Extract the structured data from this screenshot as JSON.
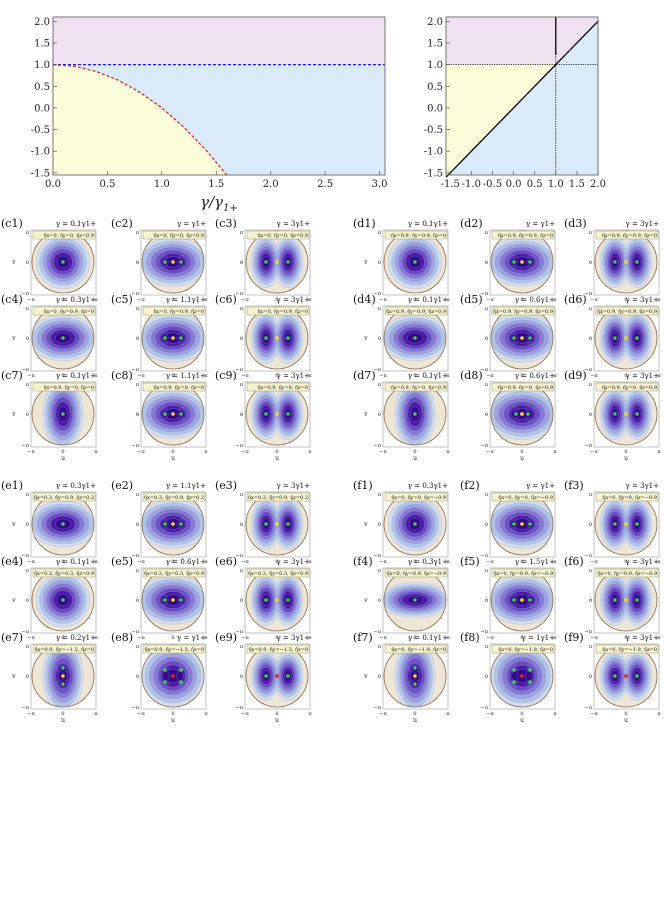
{
  "chart_data": [
    {
      "type": "line",
      "xlabel": "γ/γ1+",
      "xlim": [
        0,
        3.05
      ],
      "ylim": [
        -1.55,
        2.1
      ],
      "xticks": [
        "0.0",
        "0.5",
        "1.0",
        "1.5",
        "2.0",
        "2.5",
        "3.0"
      ],
      "yticks": [
        "-1.5",
        "-1.0",
        "-0.5",
        "0.0",
        "0.5",
        "1.0",
        "1.5",
        "2.0"
      ],
      "regions": [
        {
          "color": "#f0e1f1",
          "y_from": 1.0,
          "y_to": 2.1
        },
        {
          "color": "#dbeaf8",
          "bounded_by": "curve",
          "side": "above"
        },
        {
          "color": "#fdfdd9",
          "bounded_by": "curve",
          "side": "below"
        }
      ],
      "series": [
        {
          "style": "dashed",
          "color": "#1a1aff",
          "x": [
            0,
            3.05
          ],
          "y": [
            1.0,
            1.0
          ]
        },
        {
          "style": "dashed",
          "color": "#e02020",
          "x": [
            0,
            0.2,
            0.4,
            0.6,
            0.8,
            1.0,
            1.2,
            1.4,
            1.6
          ],
          "y": [
            1.0,
            0.96,
            0.84,
            0.64,
            0.36,
            0.0,
            -0.44,
            -0.96,
            -1.56
          ]
        }
      ]
    },
    {
      "type": "line",
      "xlim": [
        -1.6,
        2.0
      ],
      "ylim": [
        -1.55,
        2.1
      ],
      "xticks": [
        "-1.5",
        "-1.0",
        "-0.5",
        "0.0",
        "0.5",
        "1.0",
        "1.5",
        "2.0"
      ],
      "yticks": [
        "-1.5",
        "-1.0",
        "-0.5",
        "0.0",
        "0.5",
        "1.0",
        "1.5",
        "2.0"
      ],
      "regions": [
        {
          "color": "#f0e1f1",
          "description": "y>1 and y>x"
        },
        {
          "color": "#fdfdd9",
          "description": "y<1 and y>x"
        },
        {
          "color": "#dbeaf8",
          "description": "y<x"
        }
      ],
      "series": [
        {
          "style": "solid",
          "color": "#000000",
          "x": [
            -1.6,
            2.0
          ],
          "y": [
            -1.6,
            2.0
          ]
        },
        {
          "style": "solid",
          "color": "#000000",
          "x": [
            1.0,
            1.0
          ],
          "y": [
            1.22,
            2.1
          ]
        },
        {
          "style": "dotted",
          "color": "#000000",
          "x": [
            1.0,
            1.0
          ],
          "y": [
            -1.55,
            1.22
          ]
        },
        {
          "style": "dotted",
          "color": "#000000",
          "x": [
            -1.6,
            2.0
          ],
          "y": [
            1.0,
            1.0
          ]
        }
      ]
    },
    {
      "type": "heatmap",
      "axis_labels": {
        "x": "u",
        "y": "v"
      },
      "ticks": {
        "x": [
          "−π",
          "0",
          "π"
        ],
        "y": [
          "π",
          "0",
          "−π"
        ]
      },
      "color_scale": [
        "#ede5d6",
        "#d5dced",
        "#b2c4e6",
        "#9fa1e0",
        "#8678d3",
        "#6a4cc2",
        "#4c1aa6",
        "#35098b"
      ],
      "marker_colors": {
        "minimum": "#3ad44a",
        "saddle": "#f2e21a",
        "maximum": "#e22525"
      },
      "panels": [
        {
          "id": "(c1)",
          "gamma": "γ = 0.1γ1+",
          "eta": "η̃x=0, η̃y=0, η̃z=0.9",
          "shape": "single"
        },
        {
          "id": "(c2)",
          "gamma": "γ = γ1+",
          "eta": "η̃x=0, η̃y=0, η̃z=0.9",
          "shape": "double"
        },
        {
          "id": "(c3)",
          "gamma": "γ = 3γ1+",
          "eta": "η̃x=0, η̃y=0, η̃z=0.9",
          "shape": "sep"
        },
        {
          "id": "(d1)",
          "gamma": "γ = 0.1γ1+",
          "eta": "η̃x=0.9, η̃y=0.9, η̃z=0",
          "shape": "single"
        },
        {
          "id": "(d2)",
          "gamma": "γ = γ1+",
          "eta": "η̃x=0.9, η̃y=0.9, η̃z=0",
          "shape": "double"
        },
        {
          "id": "(d3)",
          "gamma": "γ = 3γ1+",
          "eta": "η̃x=0.9, η̃y=0.9, η̃z=0",
          "shape": "sep"
        },
        {
          "id": "(c4)",
          "gamma": "γ = 0.3γ1+",
          "eta": "η̃x=0, η̃y=0.9, η̃z=0",
          "shape": "hwide"
        },
        {
          "id": "(c5)",
          "gamma": "γ = 1.1γ1+",
          "eta": "η̃x=0, η̃y=0.9, η̃z=0",
          "shape": "double"
        },
        {
          "id": "(c6)",
          "gamma": "γ = 3γ1+",
          "eta": "η̃x=0, η̃y=0.9, η̃z=0",
          "shape": "sep"
        },
        {
          "id": "(d4)",
          "gamma": "γ = 0.1γ1+",
          "eta": "η̃x=0.9, η̃y=0.9, η̃z=0.9",
          "shape": "hwide"
        },
        {
          "id": "(d5)",
          "gamma": "γ = 0.6γ1+",
          "eta": "η̃x=0.9, η̃y=0.9, η̃z=0.9",
          "shape": "double"
        },
        {
          "id": "(d6)",
          "gamma": "γ = 3γ1+",
          "eta": "η̃x=0.9, η̃y=0.9, η̃z=0.9",
          "shape": "sep"
        },
        {
          "id": "(c7)",
          "gamma": "γ = 0.1γ1+",
          "eta": "η̃x=0.9, η̃y=0, η̃z=0",
          "shape": "vtall"
        },
        {
          "id": "(c8)",
          "gamma": "γ = 1.1γ1+",
          "eta": "η̃x=0.9, η̃y=0, η̃z=0",
          "shape": "double"
        },
        {
          "id": "(c9)",
          "gamma": "γ = 3γ1+",
          "eta": "η̃x=0.9, η̃y=0, η̃z=0",
          "shape": "sep"
        },
        {
          "id": "(d7)",
          "gamma": "γ = 0.1γ1+",
          "eta": "η̃x=0.9, η̃y=0, η̃z=0.9",
          "shape": "vtall"
        },
        {
          "id": "(d8)",
          "gamma": "γ = 0.6γ1+",
          "eta": "η̃x=0.9, η̃y=0, η̃z=0.9",
          "shape": "doublewide"
        },
        {
          "id": "(d9)",
          "gamma": "γ = 3γ1+",
          "eta": "η̃x=0.9, η̃y=0, η̃z=0.9",
          "shape": "sep"
        },
        {
          "id": "(e1)",
          "gamma": "γ = 0.3γ1+",
          "eta": "η̃x=0.3, η̃y=0.9, η̃z=0.2",
          "shape": "hwide"
        },
        {
          "id": "(e2)",
          "gamma": "γ = 1.1γ1+",
          "eta": "η̃x=0.3, η̃y=0.9, η̃z=0.2",
          "shape": "double"
        },
        {
          "id": "(e3)",
          "gamma": "γ = 3γ1+",
          "eta": "η̃x=0.3, η̃y=0.9, η̃z=0.2",
          "shape": "sep"
        },
        {
          "id": "(f1)",
          "gamma": "γ = 0.3γ1+",
          "eta": "η̃x=0, η̃y=0, η̃z=−0.9",
          "shape": "single"
        },
        {
          "id": "(f2)",
          "gamma": "γ = γ1+",
          "eta": "η̃x=0, η̃y=0, η̃z=−0.9",
          "shape": "double"
        },
        {
          "id": "(f3)",
          "gamma": "γ = 3γ1+",
          "eta": "η̃x=0, η̃y=0, η̃z=−0.9",
          "shape": "sep"
        },
        {
          "id": "(e4)",
          "gamma": "γ = 0.1γ1+",
          "eta": "η̃x=0.2, η̃y=0.3, η̃z=0.9",
          "shape": "single"
        },
        {
          "id": "(e5)",
          "gamma": "γ = 0.6γ1+",
          "eta": "η̃x=0.2, η̃y=0.3, η̃z=0.9",
          "shape": "double"
        },
        {
          "id": "(e6)",
          "gamma": "γ = 3γ1+",
          "eta": "η̃x=0.2, η̃y=0.3, η̃z=0.9",
          "shape": "sep"
        },
        {
          "id": "(f4)",
          "gamma": "γ = 0.3γ1+",
          "eta": "η̃x=0, η̃y=0.9, η̃z=−0.9",
          "shape": "hflat"
        },
        {
          "id": "(f5)",
          "gamma": "γ = 1.5γ1+",
          "eta": "η̃x=0, η̃y=0.9, η̃z=−0.9",
          "shape": "double"
        },
        {
          "id": "(f6)",
          "gamma": "γ = 3γ1+",
          "eta": "η̃x=0, η̃y=0.9, η̃z=−0.9",
          "shape": "sep"
        },
        {
          "id": "(e7)",
          "gamma": "γ = 0.2γ1+",
          "eta": "η̃x=0.9, η̃y=−1.5, η̃z=0",
          "shape": "vdouble"
        },
        {
          "id": "(e8)",
          "gamma": "γ = γ1+",
          "eta": "η̃x=0.9, η̃y=−1.5, η̃z=0",
          "shape": "square"
        },
        {
          "id": "(e9)",
          "gamma": "γ = 3γ1+",
          "eta": "η̃x=0.9, η̃y=−1.5, η̃z=0",
          "shape": "sepred"
        },
        {
          "id": "(f7)",
          "gamma": "γ = 0.1γ1+",
          "eta": "η̃x=0, η̃y=−1.9, η̃z=0",
          "shape": "vdouble"
        },
        {
          "id": "(f8)",
          "gamma": "γ = 1γ1+",
          "eta": "η̃x=0, η̃y=−1.9, η̃z=0",
          "shape": "square"
        },
        {
          "id": "(f9)",
          "gamma": "γ = 3γ1+",
          "eta": "η̃x=0, η̃y=−1.9, η̃z=0",
          "shape": "sepred"
        }
      ]
    }
  ]
}
